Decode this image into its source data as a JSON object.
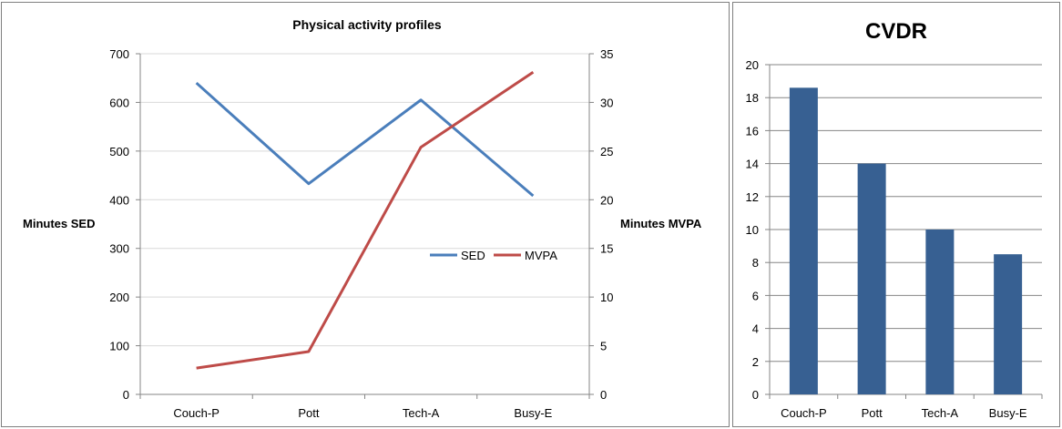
{
  "chart_data": [
    {
      "type": "line",
      "title": "Physical activity profiles",
      "categories": [
        "Couch-P",
        "Pott",
        "Tech-A",
        "Busy-E"
      ],
      "ylabel": "Minutes SED",
      "y2label": "Minutes MVPA",
      "ylim": [
        0,
        700
      ],
      "y2lim": [
        0,
        35
      ],
      "yticks": [
        "0",
        "100",
        "200",
        "300",
        "400",
        "500",
        "600",
        "700"
      ],
      "y2ticks": [
        "0",
        "5",
        "10",
        "15",
        "20",
        "25",
        "30",
        "35"
      ],
      "grid": true,
      "legend": "right",
      "series": [
        {
          "name": "SED",
          "axis": "left",
          "color": "#4a7ebb",
          "values": [
            640,
            433,
            605,
            408
          ]
        },
        {
          "name": "MVPA",
          "axis": "right",
          "color": "#be4b48",
          "values": [
            2.7,
            4.4,
            25.4,
            33.1
          ]
        }
      ]
    },
    {
      "type": "bar",
      "title": "CVDR",
      "categories": [
        "Couch-P",
        "Pott",
        "Tech-A",
        "Busy-E"
      ],
      "values": [
        18.6,
        14.0,
        10.0,
        8.5
      ],
      "color": "#376092",
      "ylim": [
        0,
        20
      ],
      "yticks": [
        "0",
        "2",
        "4",
        "6",
        "8",
        "10",
        "12",
        "14",
        "16",
        "18",
        "20"
      ],
      "grid": true
    }
  ]
}
